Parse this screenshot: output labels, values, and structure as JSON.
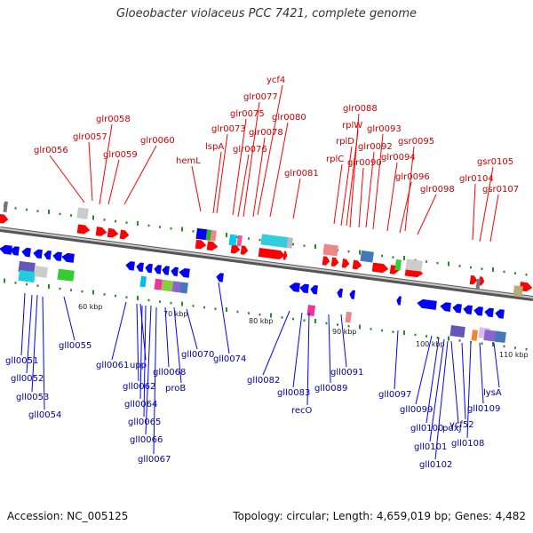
{
  "title": "Gloeobacter violaceus PCC 7421, complete genome",
  "footer": {
    "accession": "Accession: NC_005125",
    "summary": "Topology: circular; Length: 4,659,019 bp; Genes: 4,482"
  },
  "colors": {
    "forward_label": "#cc0000",
    "reverse_label": "#0000aa",
    "forward_gene": "#ff0000",
    "reverse_gene": "#0000ff",
    "backbone": "#8a8a8a",
    "tick": "#2a8a2a"
  },
  "scale_labels": [
    "60 kbp",
    "70 kbp",
    "80 kbp",
    "90 kbp",
    "100 kbp",
    "110 kbp"
  ],
  "forward_labels": [
    "glr0056",
    "glr0057",
    "glr0058",
    "glr0059",
    "glr0060",
    "hemL",
    "lspA",
    "glr0073",
    "glr0075",
    "glr0076",
    "glr0077",
    "ycf4",
    "glr0078",
    "glr0080",
    "glr0081",
    "rplC",
    "rplD",
    "rplW",
    "glr0088",
    "glr0090",
    "glr0092",
    "glr0093",
    "glr0094",
    "gsr0095",
    "glr0096",
    "glr0098",
    "glr0104",
    "gsr0105",
    "gsr0107"
  ],
  "reverse_labels": [
    "gll0051",
    "gll0052",
    "gll0053",
    "gll0054",
    "gll0055",
    "gll0061",
    "upp",
    "gll0062",
    "gll0064",
    "gll0065",
    "gll0066",
    "gll0067",
    "gll0068",
    "proB",
    "gll0070",
    "gll0074",
    "gll0082",
    "gll0083",
    "recO",
    "gll0089",
    "gll0091",
    "gll0097",
    "gll0099",
    "gll0100",
    "gll0101",
    "gll0102",
    "pdxJ",
    "ycf52",
    "gll0108",
    "gll0109",
    "lysA"
  ]
}
